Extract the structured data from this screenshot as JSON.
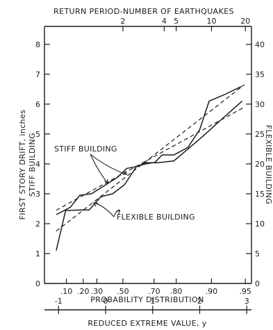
{
  "chart_data": {
    "type": "line",
    "left_axis": {
      "label_line1": "FIRST STORY DRIFT, inches",
      "label_line2": "STIFF BUILDING",
      "range": [
        0,
        8.6
      ],
      "ticks": [
        0,
        1,
        2,
        3,
        4,
        5,
        6,
        7,
        8
      ]
    },
    "right_axis": {
      "label": "FLEXIBLE BUILDING",
      "range": [
        0,
        43
      ],
      "ticks": [
        0,
        5,
        10,
        15,
        20,
        25,
        30,
        35,
        40
      ]
    },
    "top_axis": {
      "label": "RETURN PERIOD-NUMBER OF EARTHQUAKES",
      "ticks": [
        {
          "label": "2",
          "y": 0.3665
        },
        {
          "label": "4",
          "y": 1.2459
        },
        {
          "label": "5",
          "y": 1.4999
        },
        {
          "label": "10",
          "y": 2.2504
        },
        {
          "label": "20",
          "y": 2.9702
        }
      ]
    },
    "bottom_axis_probability": {
      "label": "PROBABILITY DISTRIBUTION",
      "ticks": [
        {
          "label": ".10",
          "y": -0.834
        },
        {
          "label": ".20",
          "y": -0.476
        },
        {
          "label": ".30",
          "y": -0.186
        },
        {
          "label": ".50",
          "y": 0.367
        },
        {
          "label": ".70",
          "y": 1.031
        },
        {
          "label": ".80",
          "y": 1.5
        },
        {
          "label": ".90",
          "y": 2.25
        },
        {
          "label": ".95",
          "y": 2.97
        }
      ]
    },
    "bottom_axis_reduced": {
      "label": "REDUCED EXTREME VALUE, y",
      "ticks": [
        {
          "label": "-1",
          "y": -1
        },
        {
          "label": "0",
          "y": 0
        },
        {
          "label": "1",
          "y": 1
        },
        {
          "label": "2",
          "y": 2
        },
        {
          "label": "3",
          "y": 3
        }
      ]
    },
    "x_range": [
      -1.3,
      3.1
    ],
    "series": [
      {
        "name": "STIFF BUILDING",
        "axis": "left",
        "style": "solid",
        "points": [
          [
            -1.05,
            2.3
          ],
          [
            -0.75,
            2.55
          ],
          [
            -0.55,
            2.95
          ],
          [
            -0.3,
            3.0
          ],
          [
            -0.05,
            3.25
          ],
          [
            0.25,
            3.55
          ],
          [
            0.45,
            3.85
          ],
          [
            0.62,
            3.9
          ],
          [
            0.85,
            4.0
          ],
          [
            1.05,
            4.05
          ],
          [
            1.2,
            4.3
          ],
          [
            1.45,
            4.3
          ],
          [
            1.75,
            4.55
          ],
          [
            2.0,
            5.15
          ],
          [
            2.2,
            6.1
          ],
          [
            2.5,
            6.3
          ],
          [
            2.9,
            6.6
          ]
        ]
      },
      {
        "name": "FLEXIBLE BUILDING",
        "axis": "right",
        "style": "solid",
        "points": [
          [
            -1.05,
            5.5
          ],
          [
            -0.85,
            12.2
          ],
          [
            -0.55,
            12.3
          ],
          [
            -0.35,
            12.3
          ],
          [
            -0.1,
            14.5
          ],
          [
            0.15,
            15.0
          ],
          [
            0.4,
            16.5
          ],
          [
            0.65,
            19.5
          ],
          [
            0.85,
            20.2
          ],
          [
            1.1,
            20.2
          ],
          [
            1.45,
            20.5
          ],
          [
            1.75,
            22.5
          ],
          [
            2.05,
            24.5
          ],
          [
            2.4,
            27.0
          ],
          [
            2.9,
            30.5
          ]
        ]
      },
      {
        "name": "",
        "axis": "left",
        "style": "dashed",
        "points": [
          [
            -1.05,
            2.45
          ],
          [
            2.95,
            5.9
          ]
        ]
      },
      {
        "name": "",
        "axis": "left",
        "style": "dashed",
        "points": [
          [
            -1.05,
            1.75
          ],
          [
            2.95,
            6.65
          ]
        ]
      }
    ],
    "annotations": [
      {
        "text": "STIFF BUILDING",
        "points_to": [
          [
            0.05,
            3.35
          ],
          [
            0.45,
            3.65
          ]
        ]
      },
      {
        "text": "FLEXIBLE BUILDING",
        "points_to": [
          [
            -0.25,
            2.7
          ],
          [
            0.3,
            2.45
          ]
        ]
      }
    ]
  }
}
